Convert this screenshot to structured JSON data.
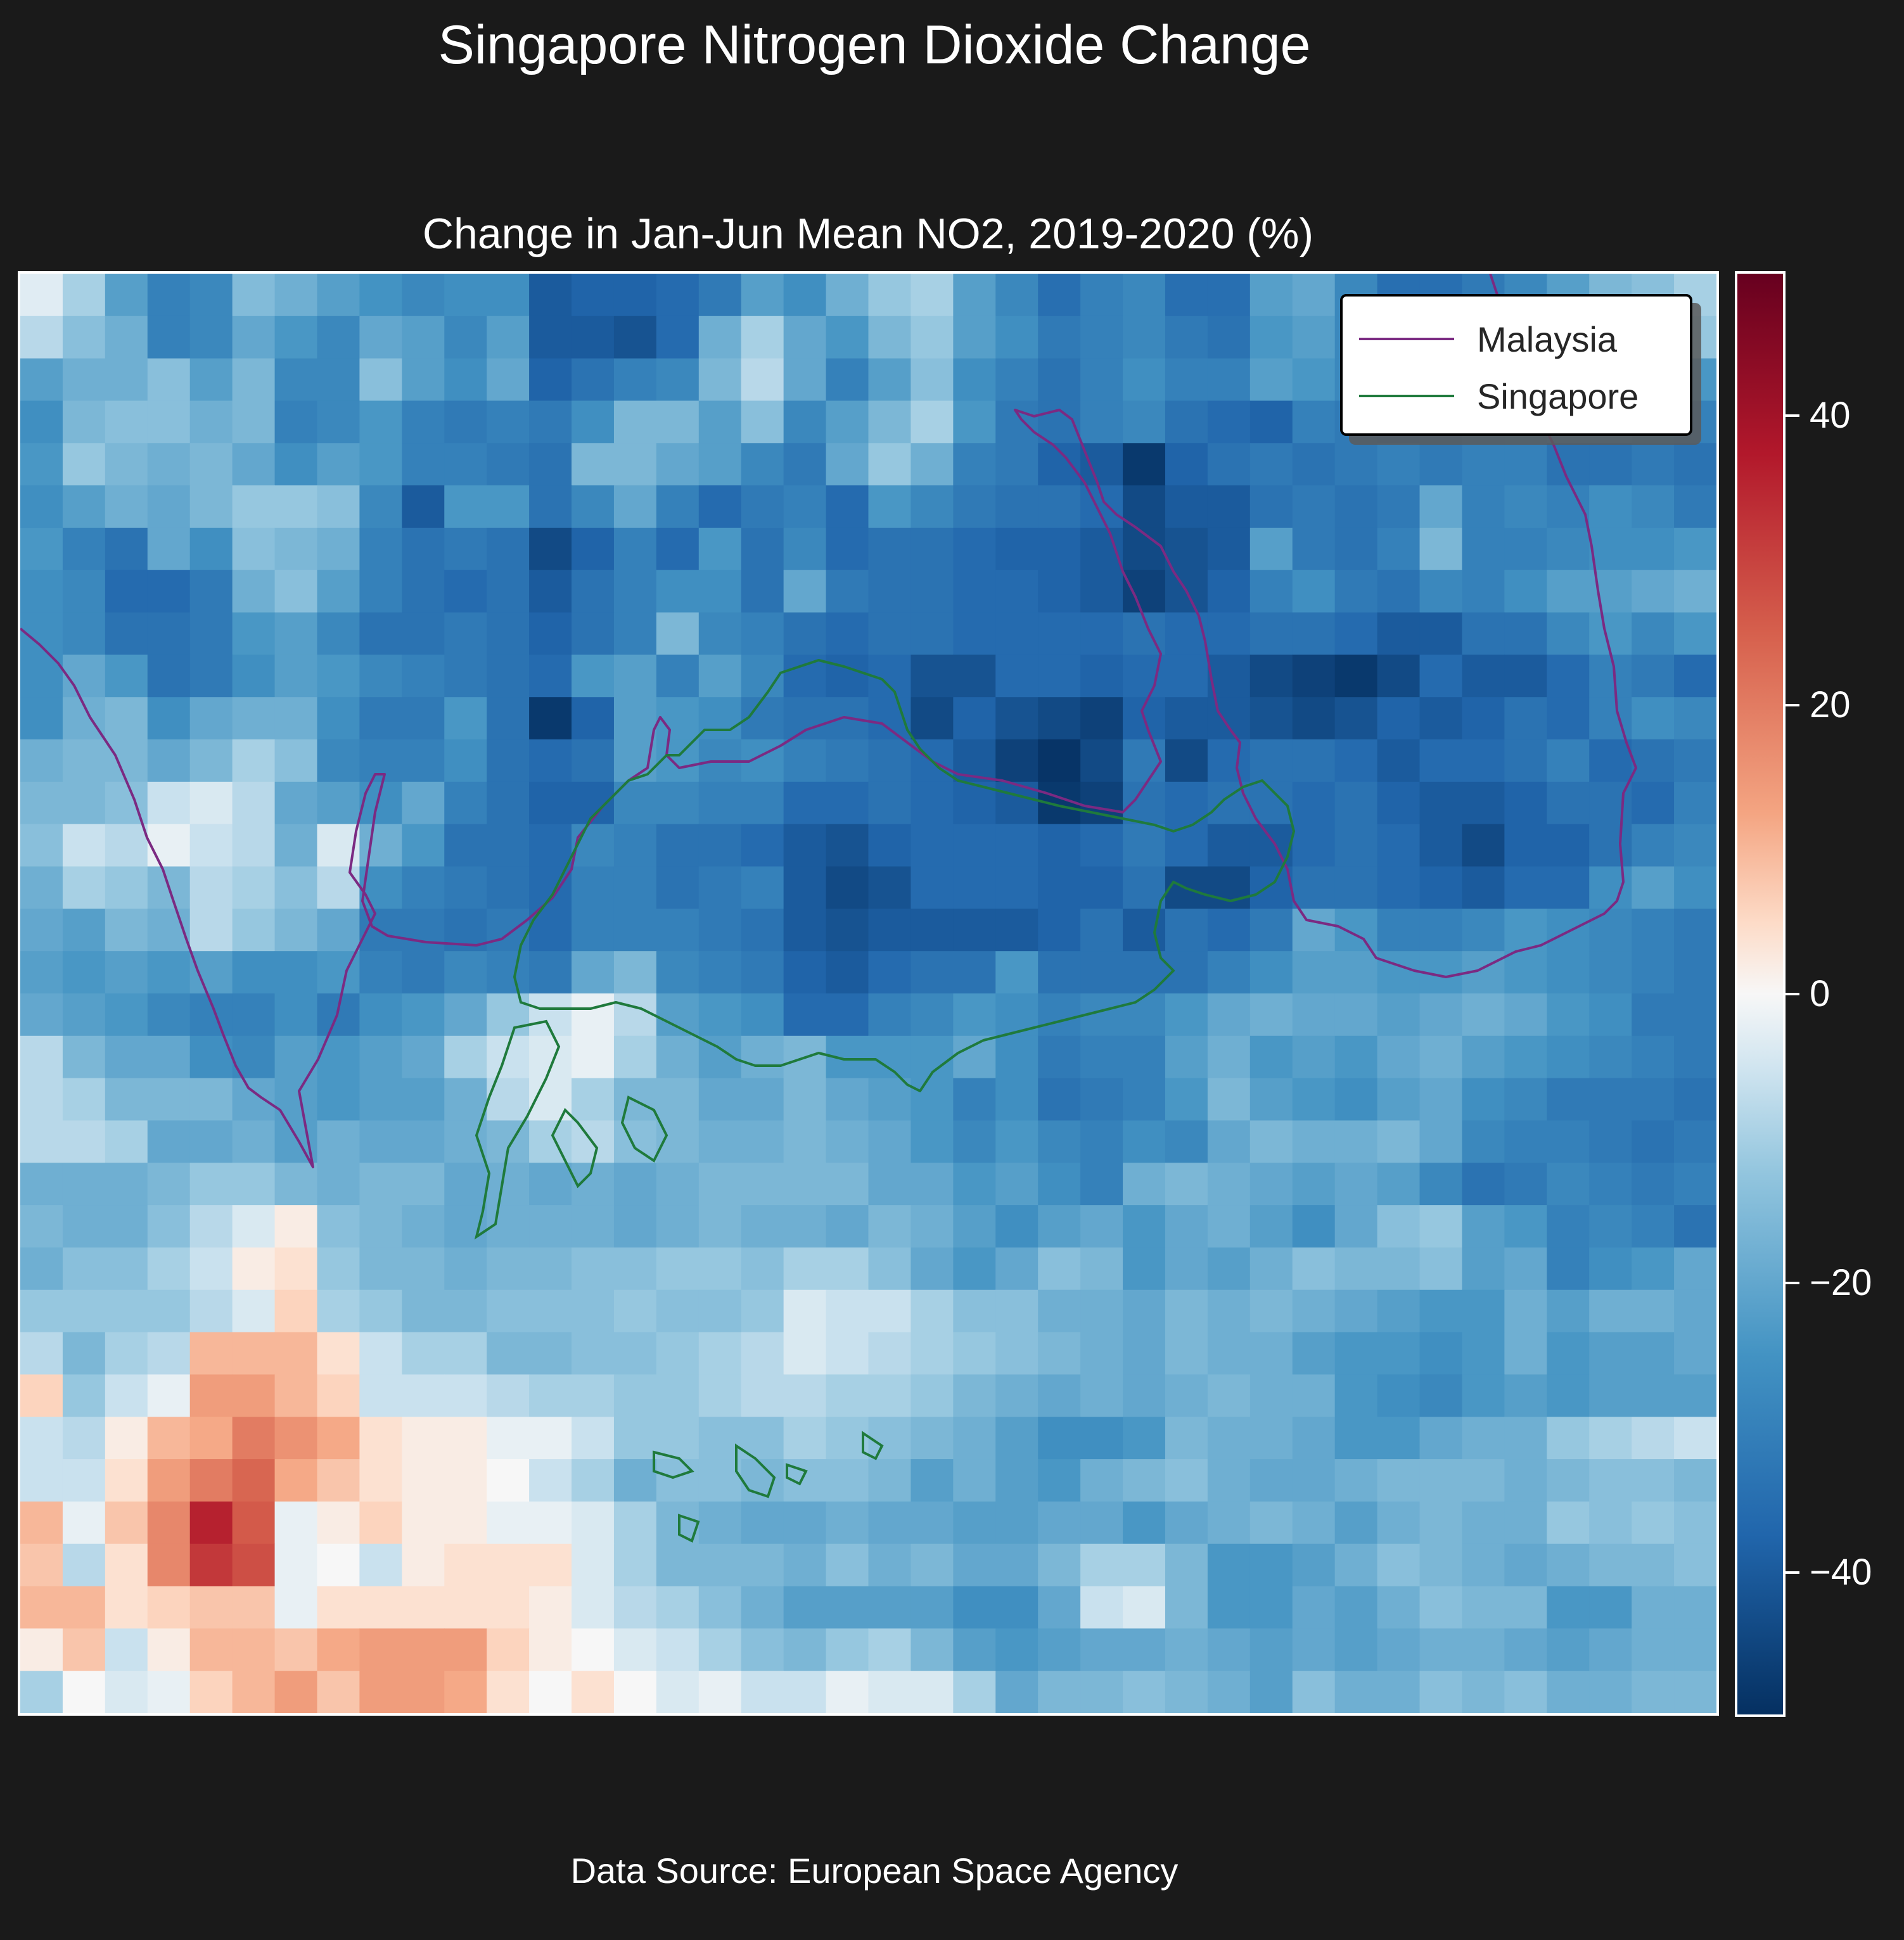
{
  "suptitle": "Singapore Nitrogen Dioxide Change",
  "title": "Change in Jan-Jun Mean NO2, 2019-2020 (%)",
  "footer": "Data Source: European Space Agency",
  "legend": {
    "items": [
      {
        "label": "Malaysia",
        "color": "#7b2a82"
      },
      {
        "label": "Singapore",
        "color": "#1f7a3c"
      }
    ]
  },
  "colorbar": {
    "min": -50,
    "max": 50,
    "cmap": "RdBu_r",
    "ticks": [
      {
        "value": 40,
        "label": "40"
      },
      {
        "value": 20,
        "label": "20"
      },
      {
        "value": 0,
        "label": "0"
      },
      {
        "value": -20,
        "label": "−20"
      },
      {
        "value": -40,
        "label": "−40"
      }
    ]
  },
  "chart_data": {
    "type": "heatmap",
    "title": "Change in Jan-Jun Mean NO2, 2019-2020 (%)",
    "cols": 40,
    "rows": 34,
    "vmin": -50,
    "vmax": 50,
    "values": [
      [
        -3,
        -10,
        -22,
        -30,
        -28,
        -15,
        -18,
        -22,
        -25,
        -28,
        -26,
        -26,
        -40,
        -38,
        -38,
        -36,
        -32,
        -22,
        -26,
        -18,
        -12,
        -10,
        -22,
        -28,
        -35,
        -30,
        -28,
        -35,
        -35,
        -22,
        -20,
        -28,
        -35,
        -35,
        -32,
        -28,
        -22,
        -16,
        -14,
        -10
      ],
      [
        -8,
        -14,
        -18,
        -30,
        -28,
        -20,
        -24,
        -28,
        -20,
        -22,
        -28,
        -22,
        -40,
        -40,
        -42,
        -36,
        -18,
        -10,
        -20,
        -24,
        -16,
        -12,
        -22,
        -26,
        -32,
        -30,
        -28,
        -32,
        -34,
        -24,
        -22,
        -28,
        -35,
        -35,
        -32,
        -26,
        -22,
        -18,
        -16,
        -12
      ],
      [
        -22,
        -18,
        -18,
        -14,
        -22,
        -16,
        -28,
        -28,
        -14,
        -22,
        -26,
        -20,
        -38,
        -34,
        -30,
        -28,
        -16,
        -8,
        -20,
        -30,
        -22,
        -14,
        -26,
        -30,
        -34,
        -30,
        -26,
        -30,
        -30,
        -22,
        -24,
        -28,
        -32,
        -34,
        -30,
        -28,
        -24,
        -20,
        -22,
        -24
      ],
      [
        -26,
        -16,
        -14,
        -14,
        -18,
        -16,
        -30,
        -28,
        -24,
        -30,
        -32,
        -30,
        -32,
        -26,
        -16,
        -16,
        -22,
        -14,
        -28,
        -22,
        -16,
        -10,
        -24,
        -32,
        -34,
        -30,
        -28,
        -34,
        -36,
        -38,
        -30,
        -32,
        -34,
        -32,
        -30,
        -28,
        -26,
        -26,
        -28,
        -30
      ],
      [
        -24,
        -12,
        -16,
        -18,
        -16,
        -20,
        -26,
        -22,
        -24,
        -30,
        -30,
        -32,
        -34,
        -16,
        -16,
        -20,
        -22,
        -28,
        -32,
        -20,
        -12,
        -18,
        -30,
        -32,
        -38,
        -40,
        -48,
        -38,
        -34,
        -32,
        -34,
        -32,
        -30,
        -32,
        -30,
        -30,
        -34,
        -34,
        -32,
        -34
      ],
      [
        -26,
        -22,
        -18,
        -20,
        -16,
        -12,
        -12,
        -14,
        -28,
        -40,
        -24,
        -24,
        -34,
        -28,
        -20,
        -30,
        -36,
        -32,
        -30,
        -36,
        -24,
        -28,
        -32,
        -34,
        -34,
        -36,
        -44,
        -40,
        -40,
        -34,
        -32,
        -34,
        -32,
        -20,
        -30,
        -28,
        -30,
        -26,
        -28,
        -32
      ],
      [
        -24,
        -30,
        -34,
        -20,
        -26,
        -14,
        -16,
        -18,
        -30,
        -34,
        -32,
        -34,
        -44,
        -38,
        -30,
        -36,
        -24,
        -34,
        -28,
        -36,
        -34,
        -34,
        -36,
        -38,
        -38,
        -40,
        -44,
        -42,
        -40,
        -22,
        -32,
        -34,
        -30,
        -16,
        -30,
        -30,
        -28,
        -26,
        -26,
        -24
      ],
      [
        -26,
        -28,
        -36,
        -36,
        -32,
        -18,
        -14,
        -22,
        -30,
        -34,
        -36,
        -34,
        -40,
        -34,
        -30,
        -26,
        -26,
        -34,
        -20,
        -32,
        -34,
        -34,
        -36,
        -36,
        -38,
        -40,
        -46,
        -42,
        -38,
        -30,
        -26,
        -32,
        -34,
        -28,
        -30,
        -26,
        -22,
        -22,
        -20,
        -18
      ],
      [
        -26,
        -28,
        -34,
        -34,
        -32,
        -24,
        -22,
        -28,
        -34,
        -34,
        -32,
        -34,
        -38,
        -34,
        -30,
        -16,
        -28,
        -30,
        -34,
        -36,
        -34,
        -34,
        -36,
        -36,
        -36,
        -36,
        -34,
        -36,
        -36,
        -34,
        -34,
        -36,
        -40,
        -40,
        -34,
        -34,
        -28,
        -24,
        -28,
        -24
      ],
      [
        -26,
        -20,
        -24,
        -34,
        -32,
        -26,
        -22,
        -24,
        -28,
        -30,
        -32,
        -34,
        -36,
        -24,
        -22,
        -30,
        -22,
        -28,
        -36,
        -38,
        -36,
        -42,
        -42,
        -36,
        -36,
        -38,
        -36,
        -36,
        -40,
        -44,
        -46,
        -48,
        -44,
        -36,
        -40,
        -40,
        -36,
        -30,
        -32,
        -36
      ],
      [
        -26,
        -18,
        -16,
        -26,
        -20,
        -18,
        -18,
        -26,
        -32,
        -32,
        -24,
        -34,
        -48,
        -38,
        -22,
        -24,
        -26,
        -32,
        -34,
        -34,
        -36,
        -44,
        -38,
        -42,
        -44,
        -46,
        -38,
        -40,
        -40,
        -42,
        -44,
        -42,
        -38,
        -40,
        -38,
        -34,
        -36,
        -30,
        -26,
        -28
      ],
      [
        -18,
        -16,
        -16,
        -20,
        -16,
        -10,
        -14,
        -28,
        -30,
        -30,
        -26,
        -34,
        -36,
        -34,
        -22,
        -24,
        -28,
        -26,
        -30,
        -32,
        -34,
        -36,
        -40,
        -46,
        -49,
        -44,
        -32,
        -44,
        -36,
        -34,
        -34,
        -36,
        -40,
        -36,
        -36,
        -34,
        -30,
        -36,
        -34,
        -32
      ],
      [
        -16,
        -16,
        -14,
        -6,
        -4,
        -8,
        -20,
        -22,
        -26,
        -20,
        -30,
        -34,
        -38,
        -38,
        -28,
        -28,
        -30,
        -30,
        -36,
        -36,
        -34,
        -36,
        -38,
        -40,
        -48,
        -46,
        -34,
        -36,
        -34,
        -34,
        -36,
        -34,
        -38,
        -40,
        -40,
        -38,
        -34,
        -34,
        -36,
        -30
      ],
      [
        -14,
        -6,
        -8,
        -2,
        -6,
        -8,
        -18,
        -4,
        -18,
        -24,
        -34,
        -34,
        -36,
        -28,
        -30,
        -34,
        -34,
        -36,
        -40,
        -42,
        -38,
        -36,
        -36,
        -36,
        -38,
        -36,
        -32,
        -36,
        -40,
        -40,
        -36,
        -34,
        -36,
        -40,
        -44,
        -38,
        -38,
        -34,
        -30,
        -28
      ],
      [
        -18,
        -10,
        -12,
        -16,
        -8,
        -10,
        -14,
        -8,
        -26,
        -30,
        -32,
        -34,
        -36,
        -30,
        -30,
        -34,
        -32,
        -30,
        -40,
        -44,
        -42,
        -36,
        -36,
        -36,
        -38,
        -38,
        -34,
        -44,
        -44,
        -38,
        -34,
        -34,
        -36,
        -38,
        -40,
        -36,
        -36,
        -26,
        -22,
        -26
      ],
      [
        -20,
        -22,
        -16,
        -18,
        -8,
        -12,
        -16,
        -20,
        -32,
        -32,
        -34,
        -32,
        -36,
        -30,
        -30,
        -30,
        -32,
        -34,
        -40,
        -42,
        -40,
        -40,
        -40,
        -40,
        -38,
        -34,
        -40,
        -34,
        -36,
        -32,
        -20,
        -24,
        -30,
        -30,
        -28,
        -24,
        -26,
        -28,
        -30,
        -32
      ],
      [
        -22,
        -24,
        -22,
        -24,
        -22,
        -26,
        -26,
        -24,
        -30,
        -32,
        -28,
        -30,
        -32,
        -20,
        -16,
        -28,
        -30,
        -32,
        -38,
        -40,
        -36,
        -34,
        -34,
        -24,
        -34,
        -34,
        -34,
        -34,
        -30,
        -26,
        -22,
        -22,
        -24,
        -24,
        -22,
        -24,
        -26,
        -28,
        -30,
        -32
      ],
      [
        -20,
        -22,
        -24,
        -28,
        -30,
        -30,
        -26,
        -32,
        -26,
        -24,
        -20,
        -12,
        -6,
        -2,
        -8,
        -22,
        -24,
        -26,
        -36,
        -36,
        -30,
        -28,
        -24,
        -26,
        -30,
        -28,
        -28,
        -24,
        -20,
        -18,
        -20,
        -20,
        -22,
        -20,
        -18,
        -20,
        -24,
        -26,
        -32,
        -32
      ],
      [
        -8,
        -16,
        -20,
        -20,
        -26,
        -28,
        -22,
        -24,
        -22,
        -20,
        -10,
        -6,
        -4,
        -2,
        -10,
        -18,
        -22,
        -18,
        -16,
        -24,
        -24,
        -24,
        -20,
        -26,
        -32,
        -30,
        -30,
        -22,
        -18,
        -24,
        -22,
        -24,
        -20,
        -18,
        -22,
        -24,
        -26,
        -28,
        -30,
        -32
      ],
      [
        -8,
        -10,
        -16,
        -16,
        -16,
        -20,
        -22,
        -24,
        -22,
        -22,
        -18,
        -8,
        -4,
        -10,
        -16,
        -16,
        -20,
        -20,
        -16,
        -20,
        -22,
        -24,
        -30,
        -26,
        -34,
        -32,
        -30,
        -24,
        -16,
        -22,
        -24,
        -26,
        -22,
        -20,
        -26,
        -28,
        -32,
        -32,
        -32,
        -34
      ],
      [
        -8,
        -8,
        -10,
        -20,
        -20,
        -18,
        -22,
        -18,
        -20,
        -20,
        -18,
        -16,
        -10,
        -8,
        -14,
        -16,
        -18,
        -18,
        -16,
        -18,
        -20,
        -24,
        -28,
        -24,
        -28,
        -30,
        -26,
        -28,
        -20,
        -16,
        -18,
        -18,
        -16,
        -20,
        -28,
        -30,
        -30,
        -32,
        -34,
        -32
      ],
      [
        -18,
        -18,
        -18,
        -16,
        -12,
        -12,
        -16,
        -18,
        -16,
        -16,
        -20,
        -18,
        -20,
        -18,
        -20,
        -18,
        -16,
        -16,
        -16,
        -16,
        -20,
        -20,
        -24,
        -22,
        -26,
        -30,
        -18,
        -16,
        -18,
        -20,
        -22,
        -20,
        -22,
        -28,
        -34,
        -32,
        -28,
        -30,
        -32,
        -30
      ],
      [
        -16,
        -18,
        -18,
        -14,
        -8,
        -4,
        2,
        -14,
        -16,
        -18,
        -20,
        -18,
        -18,
        -18,
        -20,
        -18,
        -16,
        -18,
        -18,
        -20,
        -16,
        -18,
        -22,
        -26,
        -22,
        -20,
        -24,
        -20,
        -18,
        -22,
        -26,
        -20,
        -14,
        -12,
        -22,
        -24,
        -30,
        -28,
        -30,
        -34
      ],
      [
        -18,
        -14,
        -14,
        -10,
        -6,
        2,
        4,
        -12,
        -16,
        -16,
        -18,
        -16,
        -16,
        -14,
        -14,
        -12,
        -12,
        -14,
        -10,
        -10,
        -14,
        -20,
        -24,
        -20,
        -14,
        -16,
        -24,
        -20,
        -22,
        -18,
        -14,
        -16,
        -16,
        -14,
        -22,
        -20,
        -30,
        -26,
        -24,
        -20
      ],
      [
        -12,
        -12,
        -12,
        -12,
        -8,
        -4,
        6,
        -10,
        -12,
        -16,
        -16,
        -14,
        -14,
        -14,
        -12,
        -14,
        -14,
        -12,
        -4,
        -6,
        -6,
        -10,
        -14,
        -14,
        -18,
        -18,
        -20,
        -16,
        -18,
        -16,
        -18,
        -20,
        -22,
        -24,
        -24,
        -18,
        -22,
        -18,
        -18,
        -20
      ],
      [
        -8,
        -16,
        -10,
        -8,
        10,
        10,
        10,
        4,
        -6,
        -10,
        -10,
        -16,
        -16,
        -14,
        -14,
        -12,
        -10,
        -8,
        -4,
        -6,
        -8,
        -10,
        -12,
        -14,
        -16,
        -18,
        -20,
        -16,
        -18,
        -18,
        -22,
        -24,
        -24,
        -26,
        -24,
        -18,
        -24,
        -22,
        -22,
        -20
      ],
      [
        6,
        -12,
        -6,
        -2,
        14,
        14,
        10,
        6,
        -6,
        -6,
        -6,
        -8,
        -10,
        -10,
        -12,
        -12,
        -10,
        -8,
        -8,
        -10,
        -10,
        -12,
        -16,
        -18,
        -20,
        -18,
        -20,
        -18,
        -16,
        -18,
        -18,
        -24,
        -26,
        -28,
        -24,
        -22,
        -24,
        -22,
        -22,
        -22
      ],
      [
        -6,
        -8,
        2,
        10,
        12,
        20,
        16,
        12,
        4,
        2,
        2,
        -2,
        -2,
        -6,
        -12,
        -12,
        -14,
        -14,
        -10,
        -12,
        -14,
        -16,
        -18,
        -22,
        -26,
        -26,
        -24,
        -16,
        -18,
        -18,
        -20,
        -24,
        -24,
        -20,
        -18,
        -18,
        -12,
        -10,
        -8,
        -6
      ],
      [
        -6,
        -6,
        4,
        14,
        20,
        24,
        12,
        8,
        4,
        2,
        2,
        0,
        -6,
        -10,
        -18,
        -14,
        -14,
        -16,
        -14,
        -14,
        -16,
        -22,
        -18,
        -22,
        -24,
        -18,
        -16,
        -14,
        -18,
        -20,
        -20,
        -18,
        -16,
        -16,
        -16,
        -18,
        -16,
        -14,
        -14,
        -16
      ],
      [
        10,
        -2,
        8,
        18,
        36,
        26,
        -2,
        2,
        6,
        2,
        2,
        -2,
        -2,
        -4,
        -10,
        -16,
        -18,
        -20,
        -20,
        -18,
        -20,
        -20,
        -22,
        -22,
        -20,
        -20,
        -24,
        -20,
        -18,
        -16,
        -18,
        -22,
        -18,
        -16,
        -18,
        -18,
        -12,
        -14,
        -12,
        -14
      ],
      [
        8,
        -8,
        4,
        18,
        32,
        28,
        -2,
        0,
        -6,
        2,
        4,
        4,
        4,
        -4,
        -10,
        -16,
        -16,
        -16,
        -18,
        -14,
        -18,
        -16,
        -20,
        -20,
        -16,
        -10,
        -10,
        -16,
        -24,
        -24,
        -22,
        -18,
        -14,
        -16,
        -18,
        -20,
        -18,
        -16,
        -16,
        -14
      ],
      [
        10,
        10,
        4,
        6,
        8,
        8,
        -2,
        4,
        4,
        4,
        4,
        4,
        2,
        -4,
        -8,
        -10,
        -14,
        -18,
        -22,
        -22,
        -22,
        -22,
        -26,
        -26,
        -20,
        -6,
        -4,
        -16,
        -24,
        -24,
        -20,
        -22,
        -18,
        -14,
        -16,
        -16,
        -24,
        -24,
        -18,
        -18
      ],
      [
        2,
        8,
        -6,
        2,
        10,
        10,
        8,
        12,
        14,
        14,
        14,
        6,
        2,
        0,
        -4,
        -6,
        -10,
        -14,
        -16,
        -12,
        -10,
        -16,
        -22,
        -24,
        -22,
        -20,
        -20,
        -18,
        -20,
        -22,
        -20,
        -22,
        -20,
        -18,
        -18,
        -20,
        -22,
        -20,
        -18,
        -18
      ],
      [
        -10,
        0,
        -4,
        -2,
        6,
        10,
        14,
        8,
        14,
        14,
        12,
        4,
        0,
        4,
        0,
        -4,
        -2,
        -6,
        -6,
        -2,
        -4,
        -4,
        -10,
        -20,
        -16,
        -16,
        -14,
        -16,
        -18,
        -22,
        -14,
        -18,
        -18,
        -14,
        -16,
        -14,
        -18,
        -18,
        -16,
        -16
      ]
    ]
  }
}
